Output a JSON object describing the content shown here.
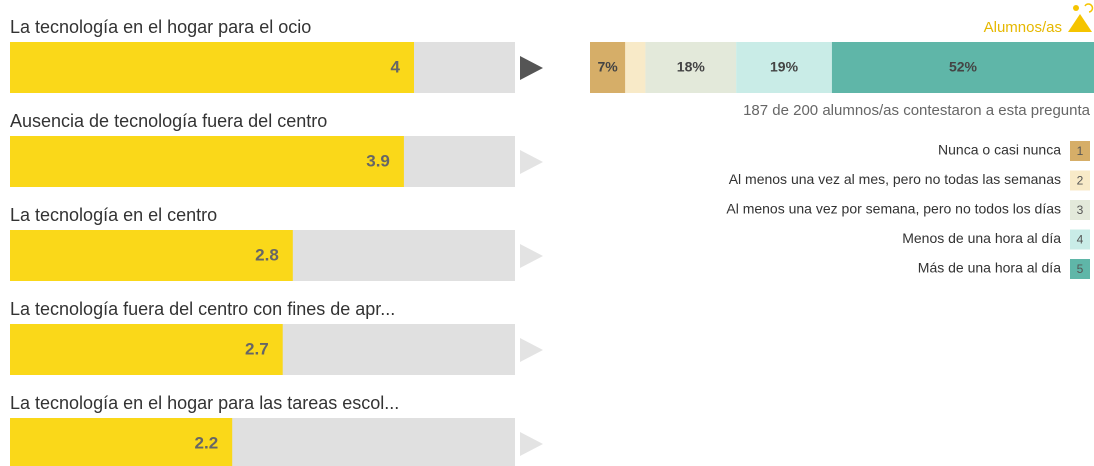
{
  "chart_data": [
    {
      "type": "bar",
      "orientation": "horizontal",
      "categories": [
        "La tecnología en el hogar para el ocio",
        "Ausencia de tecnología fuera del centro",
        "La tecnología en el centro",
        "La tecnología fuera del centro con fines de apr...",
        "La tecnología en el hogar para las tareas escol..."
      ],
      "values": [
        4,
        3.9,
        2.8,
        2.7,
        2.2
      ],
      "xlim": [
        0,
        5
      ],
      "color": "#fad819",
      "selected": 0
    },
    {
      "type": "stacked_bar",
      "title": "Alumnos/as",
      "caption": "187 de 200 alumnos/as contestaron a esta pregunta",
      "xlim": [
        0,
        100
      ],
      "series": [
        {
          "name": "Nunca o casi nunca",
          "key": "1",
          "color": "#d6ae68",
          "values": [
            7
          ],
          "value_labels": [
            "7%"
          ]
        },
        {
          "name": "Al menos una vez al mes, pero no todas las semanas",
          "key": "2",
          "color": "#f8eac8",
          "values": [
            4
          ],
          "value_labels": [
            null
          ]
        },
        {
          "name": "Al menos una vez por semana, pero no todos los días",
          "key": "3",
          "color": "#e3e9da",
          "values": [
            18
          ],
          "value_labels": [
            "18%"
          ]
        },
        {
          "name": "Menos de una hora al día",
          "key": "4",
          "color": "#c9ece7",
          "values": [
            19
          ],
          "value_labels": [
            "19%"
          ]
        },
        {
          "name": "Más de una hora al día",
          "key": "5",
          "color": "#5fb6a8",
          "values": [
            52
          ],
          "value_labels": [
            "52%"
          ]
        }
      ]
    }
  ]
}
